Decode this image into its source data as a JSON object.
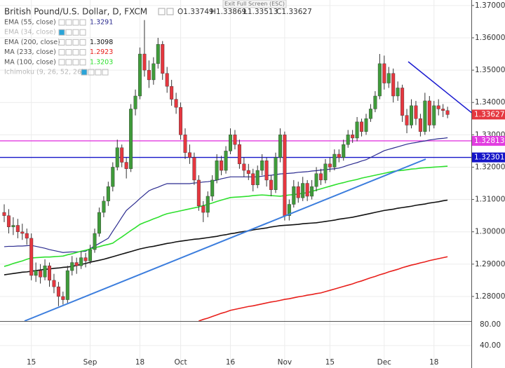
{
  "chart_data": {
    "type": "candlestick",
    "title": "British Pound/U.S. Dollar, D, FXCM",
    "header_ohlc": [
      "O1.33749",
      "H1.33869",
      "L1.33513",
      "C1.33627"
    ],
    "last_price_label": "1.33627",
    "categories": [
      null,
      null,
      null,
      null,
      null,
      null,
      "15",
      null,
      null,
      null,
      null,
      null,
      null,
      null,
      null,
      null,
      null,
      null,
      null,
      "Sep",
      null,
      null,
      null,
      null,
      null,
      null,
      null,
      null,
      null,
      null,
      "18",
      null,
      null,
      null,
      null,
      null,
      null,
      null,
      null,
      "Oct",
      null,
      null,
      null,
      null,
      null,
      null,
      null,
      null,
      null,
      null,
      "16",
      null,
      null,
      null,
      null,
      null,
      null,
      null,
      null,
      null,
      null,
      null,
      "Nov",
      null,
      null,
      null,
      null,
      null,
      null,
      null,
      null,
      null,
      "15",
      null,
      null,
      null,
      null,
      null,
      null,
      null,
      null,
      null,
      null,
      null,
      "Dec",
      null,
      null,
      null,
      null,
      null,
      null,
      null,
      null,
      null,
      null,
      "18",
      null,
      null,
      null
    ],
    "open": [
      1.306,
      1.305,
      1.3015,
      1.302,
      1.3,
      1.2995,
      1.298,
      1.2865,
      1.288,
      1.286,
      1.2895,
      1.285,
      1.283,
      1.28,
      1.279,
      1.288,
      1.2905,
      1.2895,
      1.292,
      1.291,
      1.2945,
      1.2995,
      1.306,
      1.3095,
      1.314,
      1.32,
      1.326,
      1.3215,
      1.3195,
      1.338,
      1.342,
      1.355,
      1.35,
      1.347,
      1.352,
      1.358,
      1.349,
      1.345,
      1.341,
      1.3385,
      1.33,
      1.3245,
      1.323,
      1.316,
      1.308,
      1.306,
      1.311,
      1.316,
      1.322,
      1.319,
      1.325,
      1.33,
      1.327,
      1.321,
      1.319,
      1.318,
      1.3145,
      1.319,
      1.322,
      1.316,
      1.313,
      1.323,
      1.33,
      1.305,
      1.3085,
      1.314,
      1.3105,
      1.315,
      1.311,
      1.314,
      1.318,
      1.316,
      1.321,
      1.32,
      1.324,
      1.323,
      1.327,
      1.33,
      1.329,
      1.334,
      1.331,
      1.335,
      1.338,
      1.342,
      1.352,
      1.346,
      1.349,
      1.342,
      1.3445,
      1.336,
      1.333,
      1.339,
      1.335,
      1.331,
      1.3405,
      1.333,
      1.339,
      1.338,
      1.33749
    ],
    "high": [
      1.3085,
      1.307,
      1.3045,
      1.304,
      1.3025,
      1.301,
      1.2995,
      1.2905,
      1.29,
      1.2915,
      1.2905,
      1.287,
      1.2845,
      1.2815,
      1.2895,
      1.2925,
      1.292,
      1.294,
      1.2935,
      1.296,
      1.301,
      1.3075,
      1.311,
      1.3155,
      1.3215,
      1.3285,
      1.327,
      1.323,
      1.3395,
      1.344,
      1.357,
      1.3655,
      1.353,
      1.354,
      1.36,
      1.359,
      1.351,
      1.347,
      1.343,
      1.34,
      1.332,
      1.327,
      1.3245,
      1.3175,
      1.3095,
      1.3125,
      1.3175,
      1.324,
      1.3235,
      1.3265,
      1.332,
      1.3315,
      1.3285,
      1.323,
      1.321,
      1.3195,
      1.3205,
      1.324,
      1.323,
      1.3175,
      1.3245,
      1.332,
      1.331,
      1.31,
      1.316,
      1.3155,
      1.317,
      1.316,
      1.316,
      1.32,
      1.3195,
      1.3225,
      1.323,
      1.3255,
      1.3255,
      1.3285,
      1.3315,
      1.3315,
      1.3355,
      1.335,
      1.3365,
      1.3395,
      1.3435,
      1.355,
      1.3545,
      1.351,
      1.3505,
      1.3465,
      1.3455,
      1.338,
      1.341,
      1.3405,
      1.3365,
      1.343,
      1.342,
      1.3405,
      1.341,
      1.3395,
      1.33869
    ],
    "low": [
      1.303,
      1.2995,
      1.299,
      1.298,
      1.2975,
      1.296,
      1.285,
      1.2845,
      1.284,
      1.285,
      1.283,
      1.281,
      1.277,
      1.2775,
      1.278,
      1.2865,
      1.287,
      1.2885,
      1.289,
      1.29,
      1.2935,
      1.2985,
      1.3045,
      1.308,
      1.3125,
      1.319,
      1.32,
      1.3165,
      1.3185,
      1.336,
      1.341,
      1.348,
      1.3445,
      1.3455,
      1.3505,
      1.347,
      1.343,
      1.339,
      1.3365,
      1.3285,
      1.3225,
      1.321,
      1.3145,
      1.3065,
      1.303,
      1.3045,
      1.3095,
      1.315,
      1.3175,
      1.318,
      1.324,
      1.3255,
      1.3195,
      1.317,
      1.316,
      1.3125,
      1.3135,
      1.3175,
      1.314,
      1.311,
      1.312,
      1.3215,
      1.3035,
      1.3035,
      1.3075,
      1.309,
      1.3095,
      1.3095,
      1.31,
      1.3125,
      1.3145,
      1.315,
      1.3185,
      1.319,
      1.3215,
      1.322,
      1.326,
      1.3275,
      1.328,
      1.3295,
      1.33,
      1.334,
      1.337,
      1.341,
      1.344,
      1.3445,
      1.34,
      1.3405,
      1.334,
      1.3305,
      1.332,
      1.333,
      1.3295,
      1.33,
      1.331,
      1.332,
      1.336,
      1.3355,
      1.33513
    ],
    "close": [
      1.305,
      1.3015,
      1.302,
      1.3,
      1.2995,
      1.298,
      1.2865,
      1.288,
      1.286,
      1.2895,
      1.285,
      1.283,
      1.28,
      1.279,
      1.288,
      1.2905,
      1.2895,
      1.292,
      1.291,
      1.2945,
      1.2995,
      1.306,
      1.3095,
      1.314,
      1.32,
      1.326,
      1.3215,
      1.3195,
      1.338,
      1.342,
      1.355,
      1.35,
      1.347,
      1.352,
      1.358,
      1.349,
      1.345,
      1.341,
      1.3385,
      1.33,
      1.3245,
      1.323,
      1.316,
      1.308,
      1.306,
      1.311,
      1.316,
      1.322,
      1.319,
      1.325,
      1.33,
      1.327,
      1.321,
      1.319,
      1.318,
      1.3145,
      1.319,
      1.322,
      1.316,
      1.313,
      1.323,
      1.33,
      1.305,
      1.3085,
      1.314,
      1.3105,
      1.315,
      1.311,
      1.314,
      1.318,
      1.316,
      1.321,
      1.32,
      1.324,
      1.323,
      1.327,
      1.33,
      1.329,
      1.334,
      1.331,
      1.335,
      1.338,
      1.342,
      1.352,
      1.346,
      1.349,
      1.342,
      1.3445,
      1.336,
      1.333,
      1.339,
      1.335,
      1.331,
      1.3405,
      1.333,
      1.339,
      1.338,
      1.33749,
      1.33627
    ],
    "up_color": "#3f9b3a",
    "down_color": "#e5373f",
    "series": [
      {
        "name": "EMA (55, close)",
        "color": "#2b2b8f",
        "value_label": "1.3291",
        "values": [
          1.2954,
          1.2955,
          1.2955,
          1.2956,
          1.2956,
          1.2957,
          1.2958,
          1.2955,
          1.2952,
          1.2949,
          1.2945,
          1.2942,
          1.2939,
          1.2936,
          1.2937,
          1.2938,
          1.2938,
          1.2939,
          1.294,
          1.2948,
          1.2956,
          1.2964,
          1.2972,
          1.298,
          1.3002,
          1.3023,
          1.3045,
          1.3066,
          1.3078,
          1.309,
          1.3103,
          1.3115,
          1.3127,
          1.3133,
          1.3138,
          1.3144,
          1.3149,
          1.3149,
          1.3149,
          1.3149,
          1.3149,
          1.3149,
          1.3151,
          1.3152,
          1.3154,
          1.3155,
          1.3157,
          1.316,
          1.3164,
          1.3167,
          1.317,
          1.317,
          1.317,
          1.317,
          1.317,
          1.317,
          1.317,
          1.3172,
          1.3174,
          1.3175,
          1.3177,
          1.3179,
          1.318,
          1.3181,
          1.3182,
          1.3184,
          1.3185,
          1.3186,
          1.3188,
          1.3189,
          1.3191,
          1.3192,
          1.3194,
          1.3195,
          1.3197,
          1.3201,
          1.3206,
          1.321,
          1.3214,
          1.3219,
          1.3223,
          1.323,
          1.3237,
          1.3244,
          1.3251,
          1.3255,
          1.3259,
          1.3263,
          1.3267,
          1.3271,
          1.3274,
          1.3276,
          1.3279,
          1.3281,
          1.3284,
          1.3286,
          1.3288,
          1.3289,
          1.3291
        ]
      },
      {
        "name": "EMA (34, close)",
        "hidden": true
      },
      {
        "name": "EMA (200, close)",
        "color": "#111111",
        "value_label": "1.3098",
        "values": [
          1.2867,
          1.2869,
          1.2871,
          1.2873,
          1.2875,
          1.2876,
          1.2878,
          1.288,
          1.2882,
          1.2884,
          1.2885,
          1.2887,
          1.2888,
          1.289,
          1.2891,
          1.2893,
          1.2896,
          1.2899,
          1.2902,
          1.2906,
          1.2909,
          1.2912,
          1.2915,
          1.2919,
          1.2923,
          1.2927,
          1.2931,
          1.2935,
          1.2939,
          1.2943,
          1.2947,
          1.295,
          1.2953,
          1.2955,
          1.2958,
          1.2961,
          1.2964,
          1.2966,
          1.2969,
          1.2971,
          1.2973,
          1.2975,
          1.2977,
          1.2978,
          1.298,
          1.2982,
          1.2984,
          1.2986,
          1.2989,
          1.2991,
          1.2994,
          1.2996,
          1.2999,
          1.3001,
          1.3003,
          1.3006,
          1.3008,
          1.301,
          1.3012,
          1.3015,
          1.3017,
          1.3019,
          1.302,
          1.3021,
          1.3022,
          1.3023,
          1.3025,
          1.3026,
          1.3027,
          1.3028,
          1.303,
          1.3032,
          1.3034,
          1.3036,
          1.3039,
          1.3041,
          1.3043,
          1.3045,
          1.3048,
          1.3051,
          1.3054,
          1.3057,
          1.306,
          1.3063,
          1.3066,
          1.3068,
          1.307,
          1.3073,
          1.3075,
          1.3077,
          1.3079,
          1.3082,
          1.3084,
          1.3086,
          1.3089,
          1.3091,
          1.3093,
          1.3096,
          1.3098
        ]
      },
      {
        "name": "MA (233, close)",
        "color": "#e8201c",
        "value_label": "1.2923",
        "values": [
          null,
          null,
          null,
          null,
          null,
          null,
          null,
          null,
          null,
          null,
          null,
          null,
          null,
          null,
          null,
          null,
          null,
          null,
          null,
          null,
          null,
          null,
          null,
          null,
          null,
          null,
          null,
          null,
          null,
          null,
          null,
          null,
          null,
          null,
          null,
          null,
          null,
          null,
          null,
          null,
          null,
          null,
          null,
          1.2724,
          1.2729,
          1.2733,
          1.2738,
          1.2743,
          1.2748,
          1.2752,
          1.2757,
          1.276,
          1.2763,
          1.2766,
          1.2769,
          1.2771,
          1.2774,
          1.2777,
          1.278,
          1.2783,
          1.2785,
          1.2788,
          1.2791,
          1.2793,
          1.2796,
          1.2799,
          1.2801,
          1.2804,
          1.2806,
          1.2809,
          1.2811,
          1.2815,
          1.2819,
          1.2823,
          1.2827,
          1.2831,
          1.2835,
          1.2839,
          1.2844,
          1.2848,
          1.2853,
          1.2858,
          1.2862,
          1.2867,
          1.2871,
          1.2876,
          1.288,
          1.2884,
          1.2889,
          1.2893,
          1.2897,
          1.29,
          1.2904,
          1.2907,
          1.2911,
          1.2914,
          1.2917,
          1.292,
          1.2923
        ]
      },
      {
        "name": "MA (100, close)",
        "color": "#2ee02e",
        "value_label": "1.3203",
        "values": [
          1.2893,
          1.2897,
          1.2902,
          1.2906,
          1.291,
          1.2915,
          1.2919,
          1.292,
          1.2921,
          1.2922,
          1.2922,
          1.2923,
          1.2924,
          1.2925,
          1.2929,
          1.2932,
          1.2936,
          1.294,
          1.2943,
          1.2947,
          1.2951,
          1.2954,
          1.2958,
          1.2961,
          1.2965,
          1.2975,
          1.2984,
          1.2994,
          1.3004,
          1.3013,
          1.3023,
          1.3029,
          1.3034,
          1.304,
          1.3045,
          1.3051,
          1.3056,
          1.3059,
          1.3062,
          1.3065,
          1.3068,
          1.3071,
          1.3074,
          1.3077,
          1.3081,
          1.3085,
          1.3089,
          1.3094,
          1.3098,
          1.3102,
          1.3106,
          1.3107,
          1.3108,
          1.3109,
          1.311,
          1.3112,
          1.3113,
          1.3114,
          1.3113,
          1.3112,
          1.3111,
          1.311,
          1.3112,
          1.3114,
          1.3115,
          1.3117,
          1.3119,
          1.3121,
          1.3125,
          1.3129,
          1.3133,
          1.3137,
          1.3141,
          1.3145,
          1.3149,
          1.3152,
          1.3156,
          1.3159,
          1.3162,
          1.3166,
          1.3169,
          1.3172,
          1.3175,
          1.3178,
          1.3181,
          1.3184,
          1.3187,
          1.3189,
          1.319,
          1.3192,
          1.3194,
          1.3195,
          1.3197,
          1.3198,
          1.3199,
          1.32,
          1.3201,
          1.3202,
          1.3203
        ]
      },
      {
        "name": "Ichimoku (9, 26, 52, 26)",
        "hidden": true
      }
    ],
    "hlines": [
      {
        "value": 1.32813,
        "label": "1.32813",
        "color": "#e23de0"
      },
      {
        "value": 1.32301,
        "label": "1.32301",
        "color": "#1515c8"
      }
    ],
    "ylim": [
      1.2724,
      1.3717
    ],
    "yticks": [
      {
        "value": 1.28,
        "label": "1.28000"
      },
      {
        "value": 1.29,
        "label": "1.29000"
      },
      {
        "value": 1.3,
        "label": "1.30000"
      },
      {
        "value": 1.31,
        "label": "1.31000"
      },
      {
        "value": 1.32,
        "label": "1.32000"
      },
      {
        "value": 1.33,
        "label": "1.33000"
      },
      {
        "value": 1.34,
        "label": "1.34000"
      },
      {
        "value": 1.35,
        "label": "1.35000"
      },
      {
        "value": 1.36,
        "label": "1.36000"
      },
      {
        "value": 1.37,
        "label": "1.37000"
      }
    ],
    "grid": true,
    "lower_pane": {
      "ylim": [
        -2.7,
        86.7
      ],
      "yticks": [
        {
          "value": 80,
          "label": "80.00"
        },
        {
          "value": 40,
          "label": "40.00"
        }
      ]
    },
    "exit_fullscreen": "Exit Full Screen (ESC)"
  }
}
